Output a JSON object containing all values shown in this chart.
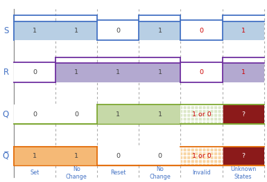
{
  "col_labels": [
    "Set",
    "No\nChange",
    "Reset",
    "No\nChange",
    "Invalid",
    "Unknown\nStates"
  ],
  "S_values": [
    1,
    1,
    0,
    1,
    0,
    1
  ],
  "R_values": [
    0,
    1,
    1,
    1,
    0,
    1
  ],
  "Q_values": [
    0,
    0,
    1,
    1,
    "1or0",
    "?"
  ],
  "QB_values": [
    1,
    1,
    0,
    0,
    "1or0",
    "?"
  ],
  "S_color_high": "#b8cfe4",
  "S_color_low": "#ffffff",
  "S_border": "#4472c4",
  "R_color_high": "#b3a9d0",
  "R_color_low": "#ffffff",
  "R_border": "#7030a0",
  "Q_color_high": "#c6d9a8",
  "Q_color_low": "#ffffff",
  "Q_border": "#7da832",
  "Q_color_invalid": "#dce8c8",
  "Q_color_unknown": "#8b1a1a",
  "QB_color_high": "#f5b976",
  "QB_color_low": "#ffffff",
  "QB_border": "#e36c09",
  "QB_color_invalid": "#f8d5a3",
  "QB_color_unknown": "#8b1a1a",
  "label_color_normal": "#404040",
  "label_color_invalid": "#cc0000",
  "label_color_unknown": "#ffffff",
  "row_label_color": "#4472c4",
  "col_label_color": "#4472c4",
  "bg_color": "#ffffff"
}
